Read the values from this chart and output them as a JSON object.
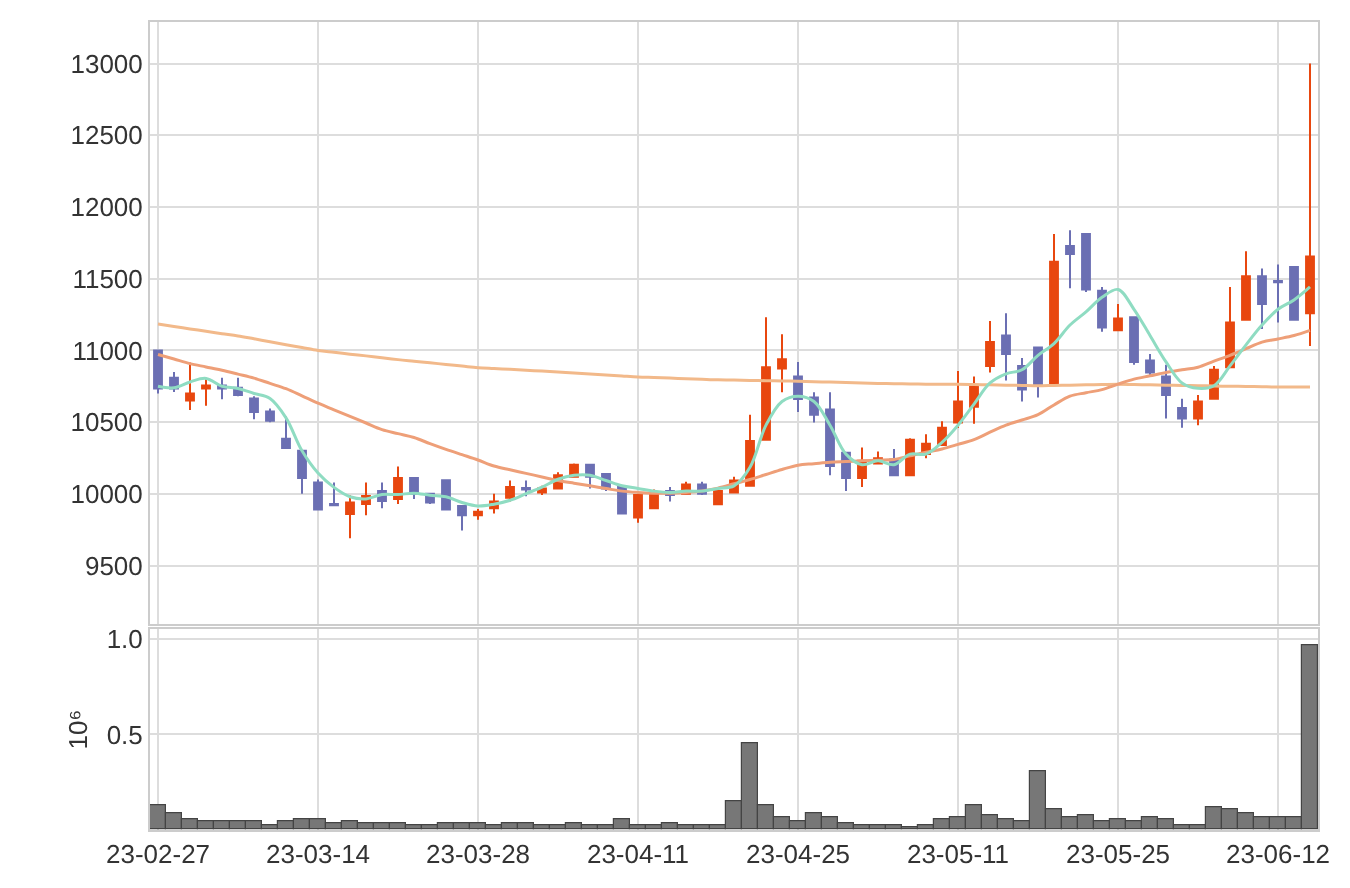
{
  "chart_data": [
    {
      "type": "candlestick",
      "tick_labels": "y",
      "grid": true,
      "categories": [
        null,
        null,
        null,
        null,
        null,
        null,
        null,
        null,
        null,
        null,
        null,
        null,
        null,
        null,
        null,
        null,
        null,
        null,
        null,
        null,
        null,
        null,
        null,
        null,
        null,
        null,
        null,
        null,
        null,
        null,
        null,
        null,
        null,
        null,
        null,
        null,
        null,
        null,
        null,
        null,
        null,
        null,
        null,
        null,
        null,
        null,
        null,
        null,
        null,
        null,
        null,
        null,
        null,
        null,
        null,
        null,
        null,
        null,
        null,
        null,
        null,
        null,
        null,
        null,
        null,
        null,
        null,
        null,
        null,
        null,
        null,
        null,
        null
      ],
      "ylim": [
        9090,
        13290
      ],
      "yticks": [
        9500,
        10000,
        10500,
        11000,
        11500,
        12000,
        12500,
        13000
      ],
      "ohlc": [
        [
          11000,
          11000,
          10700,
          10735
        ],
        [
          10810,
          10850,
          10710,
          10735
        ],
        [
          10650,
          10915,
          10585,
          10700
        ],
        [
          10735,
          10810,
          10615,
          10755
        ],
        [
          10755,
          10810,
          10660,
          10735
        ],
        [
          10740,
          10810,
          10680,
          10690
        ],
        [
          10665,
          10680,
          10520,
          10570
        ],
        [
          10575,
          10595,
          10500,
          10510
        ],
        [
          10385,
          10540,
          10320,
          10320
        ],
        [
          10300,
          10300,
          10000,
          10110
        ],
        [
          10080,
          10100,
          9890,
          9890
        ],
        [
          9930,
          10080,
          9920,
          9920
        ],
        [
          9860,
          9990,
          9690,
          9940
        ],
        [
          9930,
          10080,
          9850,
          9985
        ],
        [
          10020,
          10080,
          9900,
          9950
        ],
        [
          9965,
          10190,
          9930,
          10110
        ],
        [
          10110,
          10110,
          9965,
          10000
        ],
        [
          10000,
          10000,
          9930,
          9940
        ],
        [
          10095,
          10095,
          9890,
          9890
        ],
        [
          9915,
          9915,
          9745,
          9850
        ],
        [
          9850,
          9895,
          9820,
          9875
        ],
        [
          9900,
          10000,
          9863,
          9946
        ],
        [
          9973,
          10093,
          9946,
          10047
        ],
        [
          10040,
          10093,
          9983,
          10030
        ],
        [
          10010,
          10056,
          9992,
          10038
        ],
        [
          10038,
          10150,
          10038,
          10130
        ],
        [
          10120,
          10212,
          10120,
          10203
        ],
        [
          10203,
          10203,
          10038,
          10120
        ],
        [
          10139,
          10139,
          10019,
          10038
        ],
        [
          10047,
          10047,
          9863,
          9863
        ],
        [
          9836,
          10000,
          9799,
          9992
        ],
        [
          9900,
          10030,
          9900,
          10010
        ],
        [
          10019,
          10047,
          9946,
          9992
        ],
        [
          10001,
          10084,
          10001,
          10065
        ],
        [
          10065,
          10084,
          9992,
          10001
        ],
        [
          9927,
          10040,
          9927,
          10019
        ],
        [
          10010,
          10120,
          10010,
          10093
        ],
        [
          10056,
          10552,
          10056,
          10369
        ],
        [
          10378,
          11232,
          10378,
          10883
        ],
        [
          10874,
          11113,
          10708,
          10938
        ],
        [
          10819,
          10920,
          10571,
          10662
        ],
        [
          10672,
          10708,
          10497,
          10552
        ],
        [
          10589,
          10708,
          10130,
          10194
        ],
        [
          10286,
          10286,
          10019,
          10111
        ],
        [
          10111,
          10323,
          10047,
          10231
        ],
        [
          10212,
          10295,
          10212,
          10249
        ],
        [
          10240,
          10313,
          10130,
          10130
        ],
        [
          10130,
          10387,
          10130,
          10378
        ],
        [
          10277,
          10415,
          10249,
          10350
        ],
        [
          10341,
          10506,
          10341,
          10461
        ],
        [
          10497,
          10856,
          10460,
          10644
        ],
        [
          10608,
          10819,
          10488,
          10754
        ],
        [
          10892,
          11205,
          10846,
          11058
        ],
        [
          11104,
          11260,
          10791,
          10975
        ],
        [
          10892,
          10947,
          10644,
          10727
        ],
        [
          11021,
          11021,
          10672,
          10754
        ],
        [
          10764,
          11811,
          10764,
          11618
        ],
        [
          11728,
          11838,
          11434,
          11673
        ],
        [
          11811,
          11811,
          11407,
          11425
        ],
        [
          11416,
          11443,
          11131,
          11159
        ],
        [
          11140,
          11324,
          11140,
          11223
        ],
        [
          11232,
          11232,
          10900,
          10920
        ],
        [
          10929,
          10975,
          10819,
          10846
        ],
        [
          10819,
          10901,
          10525,
          10690
        ],
        [
          10598,
          10663,
          10461,
          10525
        ],
        [
          10525,
          10690,
          10479,
          10644
        ],
        [
          10663,
          10892,
          10663,
          10865
        ],
        [
          10883,
          11443,
          10883,
          11195
        ],
        [
          11214,
          11691,
          11214,
          11517
        ],
        [
          11517,
          11572,
          11149,
          11324
        ],
        [
          11485,
          11600,
          11195,
          11475
        ],
        [
          11581,
          11581,
          11214,
          11214
        ],
        [
          11260,
          13000,
          11030,
          11655
        ]
      ],
      "colors": [
        "#6b6fb3",
        "#6b6fb3",
        "#e8470f",
        "#e8470f",
        "#6b6fb3",
        "#6b6fb3",
        "#6b6fb3",
        "#6b6fb3",
        "#6b6fb3",
        "#6b6fb3",
        "#6b6fb3",
        "#6b6fb3",
        "#e8470f",
        "#e8470f",
        "#6b6fb3",
        "#e8470f",
        "#6b6fb3",
        "#6b6fb3",
        "#6b6fb3",
        "#6b6fb3",
        "#e8470f",
        "#e8470f",
        "#e8470f",
        "#6b6fb3",
        "#e8470f",
        "#e8470f",
        "#e8470f",
        "#6b6fb3",
        "#6b6fb3",
        "#6b6fb3",
        "#e8470f",
        "#e8470f",
        "#6b6fb3",
        "#e8470f",
        "#6b6fb3",
        "#e8470f",
        "#e8470f",
        "#e8470f",
        "#e8470f",
        "#e8470f",
        "#6b6fb3",
        "#6b6fb3",
        "#6b6fb3",
        "#6b6fb3",
        "#e8470f",
        "#e8470f",
        "#6b6fb3",
        "#e8470f",
        "#e8470f",
        "#e8470f",
        "#e8470f",
        "#e8470f",
        "#e8470f",
        "#6b6fb3",
        "#6b6fb3",
        "#6b6fb3",
        "#e8470f",
        "#6b6fb3",
        "#6b6fb3",
        "#6b6fb3",
        "#e8470f",
        "#6b6fb3",
        "#6b6fb3",
        "#6b6fb3",
        "#6b6fb3",
        "#e8470f",
        "#e8470f",
        "#e8470f",
        "#e8470f",
        "#6b6fb3",
        "#6b6fb3",
        "#6b6fb3",
        "#e8470f"
      ],
      "series": [
        {
          "type": "line",
          "color": "#f2b98a",
          "values": [
            11184,
            11167,
            11150,
            11134,
            11117,
            11101,
            11081,
            11061,
            11040,
            11020,
            11000,
            10987,
            10974,
            10962,
            10949,
            10936,
            10925,
            10914,
            10902,
            10891,
            10880,
            10874,
            10868,
            10862,
            10856,
            10850,
            10843,
            10836,
            10829,
            10822,
            10815,
            10811,
            10807,
            10803,
            10799,
            10795,
            10793,
            10791,
            10789,
            10787,
            10785,
            10782,
            10779,
            10776,
            10773,
            10770,
            10768,
            10766,
            10765,
            10764,
            10764,
            10762,
            10760,
            10758,
            10756,
            10754,
            10756,
            10758,
            10760,
            10762,
            10764,
            10762,
            10760,
            10758,
            10756,
            10754,
            10752,
            10750,
            10749,
            10747,
            10745,
            10745,
            10745
          ]
        },
        {
          "type": "line",
          "color": "#ee9f78",
          "values": [
            10972,
            10940,
            10908,
            10885,
            10862,
            10835,
            10807,
            10770,
            10733,
            10683,
            10632,
            10586,
            10540,
            10494,
            10448,
            10420,
            10393,
            10350,
            10310,
            10273,
            10236,
            10194,
            10168,
            10143,
            10118,
            10093,
            10074,
            10056,
            10037,
            10019,
            10010,
            10005,
            10005,
            10010,
            10020,
            10040,
            10070,
            10100,
            10135,
            10170,
            10200,
            10210,
            10220,
            10225,
            10230,
            10235,
            10240,
            10265,
            10290,
            10313,
            10345,
            10378,
            10430,
            10479,
            10515,
            10552,
            10620,
            10681,
            10705,
            10727,
            10765,
            10800,
            10823,
            10846,
            10865,
            10883,
            10925,
            10966,
            11012,
            11058,
            11080,
            11104,
            11140
          ]
        },
        {
          "type": "line",
          "color": "#8fdcc2",
          "values": [
            10750,
            10740,
            10780,
            10805,
            10750,
            10735,
            10700,
            10665,
            10530,
            10300,
            10145,
            10045,
            9980,
            9965,
            9995,
            9995,
            10005,
            9990,
            9980,
            9940,
            9915,
            9928,
            9955,
            10001,
            10047,
            10102,
            10130,
            10130,
            10093,
            10056,
            10038,
            10019,
            10010,
            10019,
            10019,
            10038,
            10056,
            10185,
            10479,
            10644,
            10681,
            10644,
            10479,
            10277,
            10203,
            10231,
            10203,
            10277,
            10277,
            10359,
            10479,
            10626,
            10773,
            10837,
            10865,
            10966,
            11048,
            11177,
            11269,
            11370,
            11425,
            11287,
            11104,
            10920,
            10773,
            10736,
            10754,
            10892,
            11039,
            11177,
            11287,
            11352,
            11443
          ]
        }
      ]
    },
    {
      "type": "bar",
      "grid": true,
      "ylabel": "10⁶",
      "color": "#777777",
      "categories": [
        "23-02-27",
        null,
        null,
        null,
        null,
        null,
        null,
        null,
        null,
        null,
        "23-03-14",
        null,
        null,
        null,
        null,
        null,
        null,
        null,
        null,
        null,
        "23-03-28",
        null,
        null,
        null,
        null,
        null,
        null,
        null,
        null,
        null,
        "23-04-11",
        null,
        null,
        null,
        null,
        null,
        null,
        null,
        null,
        null,
        "23-04-25",
        null,
        null,
        null,
        null,
        null,
        null,
        null,
        null,
        null,
        "23-05-11",
        null,
        null,
        null,
        null,
        null,
        null,
        null,
        null,
        null,
        "23-05-25",
        null,
        null,
        null,
        null,
        null,
        null,
        null,
        null,
        null,
        "23-06-12",
        null,
        null
      ],
      "ylim": [
        0,
        1.05
      ],
      "yticks": [
        0.5,
        {
          "value": 1,
          "label": "1.0"
        }
      ],
      "values": [
        0.13,
        0.09,
        0.06,
        0.05,
        0.05,
        0.05,
        0.05,
        0.03,
        0.05,
        0.06,
        0.06,
        0.04,
        0.05,
        0.04,
        0.04,
        0.04,
        0.03,
        0.03,
        0.04,
        0.04,
        0.04,
        0.03,
        0.04,
        0.04,
        0.03,
        0.03,
        0.035,
        0.03,
        0.02,
        0.06,
        0.03,
        0.03,
        0.035,
        0.03,
        0.03,
        0.03,
        0.15,
        0.45,
        0.13,
        0.07,
        0.05,
        0.09,
        0.07,
        0.035,
        0.03,
        0.03,
        0.03,
        0.01,
        0.03,
        0.06,
        0.07,
        0.13,
        0.08,
        0.06,
        0.05,
        0.31,
        0.11,
        0.07,
        0.08,
        0.05,
        0.06,
        0.05,
        0.07,
        0.06,
        0.03,
        0.03,
        0.12,
        0.11,
        0.09,
        0.07,
        0.07,
        0.07,
        0.97
      ]
    }
  ]
}
